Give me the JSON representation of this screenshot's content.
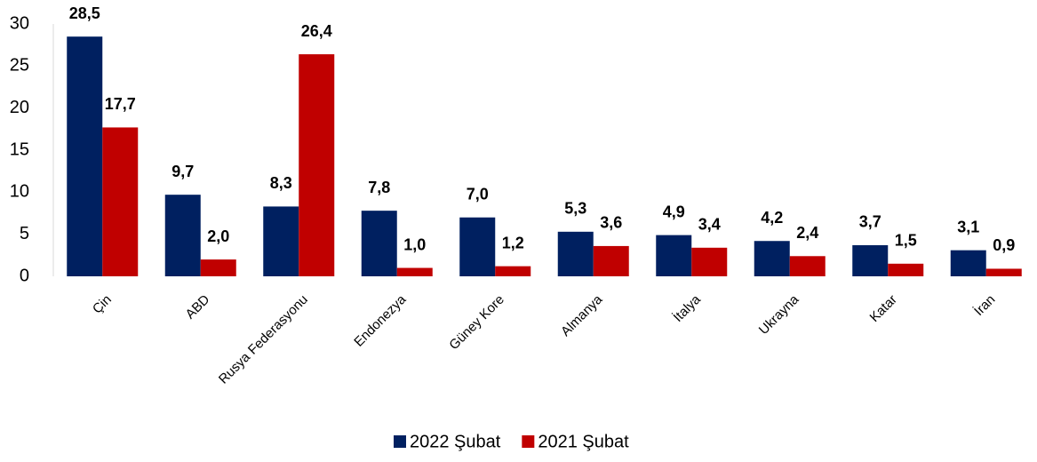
{
  "chart_data": {
    "type": "bar",
    "categories": [
      "Çin",
      "ABD",
      "Rusya Federasyonu",
      "Endonezya",
      "Güney Kore",
      "Almanya",
      "İtalya",
      "Ukrayna",
      "Katar",
      "İran"
    ],
    "series": [
      {
        "name": "2022 Şubat",
        "color": "#002060",
        "values": [
          28.5,
          9.7,
          8.3,
          7.8,
          7.0,
          5.3,
          4.9,
          4.2,
          3.7,
          3.1
        ],
        "value_labels": [
          "28,5",
          "9,7",
          "8,3",
          "7,8",
          "7,0",
          "5,3",
          "4,9",
          "4,2",
          "3,7",
          "3,1"
        ]
      },
      {
        "name": "2021 Şubat",
        "color": "#c00000",
        "values": [
          17.7,
          2.0,
          26.4,
          1.0,
          1.2,
          3.6,
          3.4,
          2.4,
          1.5,
          0.9
        ],
        "value_labels": [
          "17,7",
          "2,0",
          "26,4",
          "1,0",
          "1,2",
          "3,6",
          "3,4",
          "2,4",
          "1,5",
          "0,9"
        ]
      }
    ],
    "ylim": [
      0,
      30
    ],
    "yticks": [
      0,
      5,
      10,
      15,
      20,
      25,
      30
    ],
    "grid": false,
    "legend": "bottom"
  }
}
